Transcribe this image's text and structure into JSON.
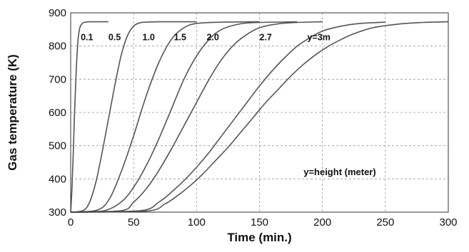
{
  "chart_data": {
    "type": "line",
    "xlabel": "Time (min.)",
    "ylabel": "Gas temperature (K)",
    "xlim": [
      0,
      300
    ],
    "ylim": [
      300,
      900
    ],
    "xticks": [
      "0",
      "50",
      "100",
      "150",
      "200",
      "250",
      "300"
    ],
    "yticks": [
      "300",
      "400",
      "500",
      "600",
      "700",
      "800",
      "900"
    ],
    "grid": true,
    "annotation": "y=height (meter)",
    "series": [
      {
        "name": "0.1",
        "label": "0.1",
        "label_at": [
          8,
          826
        ],
        "x": [
          0,
          1,
          2,
          3,
          4,
          5,
          6,
          7,
          8,
          10,
          12,
          15,
          20,
          30
        ],
        "y": [
          300,
          370,
          470,
          590,
          690,
          770,
          825,
          850,
          862,
          870,
          872,
          873,
          873,
          873
        ]
      },
      {
        "name": "0.5",
        "label": "0.5",
        "label_at": [
          30,
          826
        ],
        "x": [
          0,
          10,
          15,
          20,
          25,
          30,
          35,
          40,
          45,
          50,
          55,
          60,
          70,
          100
        ],
        "y": [
          300,
          305,
          330,
          390,
          480,
          580,
          680,
          770,
          830,
          860,
          870,
          872,
          873,
          873
        ]
      },
      {
        "name": "1.0",
        "label": "1.0",
        "label_at": [
          57,
          826
        ],
        "x": [
          0,
          20,
          30,
          40,
          50,
          60,
          70,
          80,
          90,
          100,
          120,
          150
        ],
        "y": [
          300,
          305,
          335,
          420,
          530,
          650,
          750,
          820,
          855,
          868,
          872,
          873
        ]
      },
      {
        "name": "1.5",
        "label": "1.5",
        "label_at": [
          82,
          826
        ],
        "x": [
          0,
          25,
          40,
          50,
          60,
          70,
          80,
          90,
          100,
          110,
          120,
          135,
          150,
          180
        ],
        "y": [
          300,
          303,
          330,
          375,
          440,
          520,
          610,
          700,
          770,
          820,
          850,
          867,
          871,
          873
        ]
      },
      {
        "name": "2.0",
        "label": "2.0",
        "label_at": [
          108,
          826
        ],
        "x": [
          0,
          40,
          50,
          60,
          70,
          80,
          90,
          100,
          110,
          120,
          130,
          140,
          150,
          165,
          180,
          200
        ],
        "y": [
          300,
          304,
          330,
          370,
          425,
          490,
          560,
          630,
          700,
          760,
          805,
          835,
          855,
          867,
          871,
          873
        ]
      },
      {
        "name": "2.7",
        "label": "2.7",
        "label_at": [
          150,
          826
        ],
        "x": [
          0,
          55,
          70,
          80,
          90,
          100,
          110,
          120,
          130,
          140,
          150,
          160,
          170,
          180,
          190,
          200,
          215,
          230,
          250
        ],
        "y": [
          300,
          304,
          330,
          360,
          395,
          435,
          480,
          530,
          580,
          630,
          680,
          725,
          765,
          800,
          825,
          845,
          860,
          868,
          872
        ]
      },
      {
        "name": "y=3m",
        "label": "y=3m",
        "label_at": [
          188,
          826
        ],
        "x": [
          0,
          60,
          75,
          85,
          95,
          105,
          115,
          125,
          135,
          145,
          155,
          165,
          175,
          185,
          195,
          205,
          215,
          225,
          240,
          260,
          280,
          300
        ],
        "y": [
          300,
          303,
          325,
          350,
          380,
          415,
          455,
          495,
          540,
          585,
          630,
          670,
          710,
          745,
          775,
          800,
          820,
          837,
          855,
          866,
          871,
          873
        ]
      }
    ]
  }
}
